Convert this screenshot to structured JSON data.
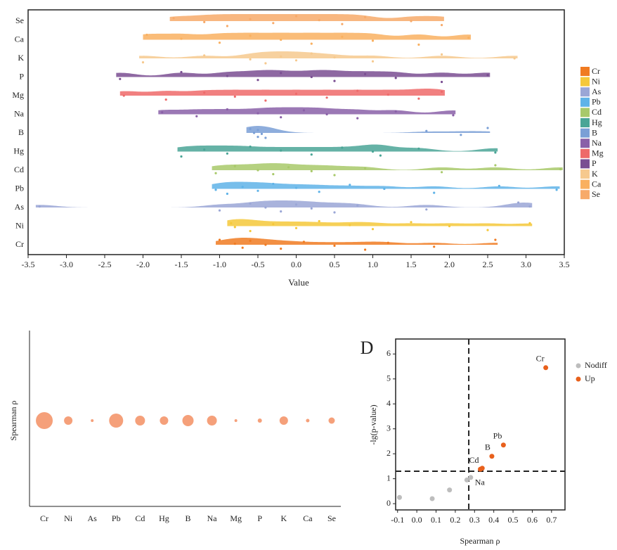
{
  "chart_data": [
    {
      "type": "raincloud",
      "xlabel": "Value",
      "xlim": [
        -3.5,
        3.5
      ],
      "xticks": [
        {
          "value": -3.5,
          "label": "-3.5"
        },
        {
          "value": -3,
          "label": "-3.0"
        },
        {
          "value": -2.5,
          "label": "-2.5"
        },
        {
          "value": -2,
          "label": "-2.0"
        },
        {
          "value": -1.5,
          "label": "-1.5"
        },
        {
          "value": -1,
          "label": "-1.0"
        },
        {
          "value": -0.5,
          "label": "-0.5"
        },
        {
          "value": 0,
          "label": "0.0"
        },
        {
          "value": 0.5,
          "label": "0.5"
        },
        {
          "value": 1,
          "label": "1.0"
        },
        {
          "value": 1.5,
          "label": "1.5"
        },
        {
          "value": 2,
          "label": "2.0"
        },
        {
          "value": 2.5,
          "label": "2.5"
        },
        {
          "value": 3,
          "label": "3.0"
        },
        {
          "value": 3.5,
          "label": "3.5"
        }
      ],
      "legend": "right",
      "series": [
        {
          "name": "Cr",
          "color": "#f07b22",
          "values": [
            -1.0,
            -0.8,
            -0.7,
            -0.6,
            -0.4,
            -0.2,
            0.1,
            0.5,
            0.9,
            1.2,
            1.8,
            2.6
          ]
        },
        {
          "name": "Ni",
          "color": "#f5c83a",
          "values": [
            -0.85,
            -0.8,
            -0.6,
            -0.3,
            0,
            0.3,
            0.7,
            1.0,
            1.5,
            2.0,
            2.5,
            3.05
          ]
        },
        {
          "name": "As",
          "color": "#9aa6d6",
          "values": [
            -3.35,
            -1.0,
            -0.6,
            -0.4,
            -0.2,
            0,
            0.2,
            0.5,
            0.8,
            1.7,
            2.9,
            3.05
          ]
        },
        {
          "name": "Pb",
          "color": "#5fb3e8",
          "values": [
            -1.05,
            -0.9,
            -0.7,
            -0.5,
            -0.3,
            0,
            0.3,
            0.7,
            1.15,
            1.8,
            2.65,
            3.4
          ]
        },
        {
          "name": "Cd",
          "color": "#a8c96a",
          "values": [
            -1.05,
            -0.8,
            -0.5,
            -0.3,
            -0.1,
            0.2,
            0.5,
            0.9,
            1.9,
            2.6,
            3.45
          ]
        },
        {
          "name": "Hg",
          "color": "#4aa596",
          "values": [
            -1.5,
            -1.2,
            -0.9,
            -0.6,
            -0.2,
            0.2,
            0.6,
            1.0,
            1.1,
            1.6,
            2.6
          ]
        },
        {
          "name": "B",
          "color": "#7a9fd6",
          "values": [
            -0.6,
            -0.55,
            -0.5,
            -0.5,
            -0.45,
            -0.4,
            1.7,
            2.15,
            2.5
          ]
        },
        {
          "name": "Na",
          "color": "#8a60a8",
          "values": [
            -1.75,
            -1.3,
            -0.9,
            -0.5,
            -0.2,
            0.1,
            0.4,
            0.8,
            1.3,
            2.05
          ]
        },
        {
          "name": "Mg",
          "color": "#ee6a6a",
          "values": [
            -2.25,
            -1.7,
            -1.2,
            -0.8,
            -0.4,
            0,
            0.4,
            0.8,
            1.2,
            1.6,
            1.9
          ]
        },
        {
          "name": "P",
          "color": "#7a4e92",
          "values": [
            -2.3,
            -1.5,
            -0.9,
            -0.5,
            -0.2,
            0.2,
            0.5,
            0.9,
            1.3,
            1.9,
            2.5
          ]
        },
        {
          "name": "K",
          "color": "#f6c98e",
          "values": [
            -2.0,
            -1.2,
            -0.6,
            -0.4,
            -0.2,
            0,
            0.2,
            0.5,
            1.0,
            1.9,
            2.85
          ]
        },
        {
          "name": "Ca",
          "color": "#f9b060",
          "values": [
            -1.95,
            -1.5,
            -1.0,
            -0.6,
            -0.2,
            0.2,
            0.6,
            1.0,
            1.6,
            2.25
          ]
        },
        {
          "name": "Se",
          "color": "#f7aa6a",
          "values": [
            -1.6,
            -1.2,
            -0.9,
            -0.6,
            -0.3,
            0,
            0.3,
            0.6,
            0.9,
            1.5,
            1.9
          ]
        }
      ]
    },
    {
      "type": "bubble",
      "ylabel": "Spearman ρ",
      "color": "#f5a07a",
      "categories": [
        "Cr",
        "Ni",
        "As",
        "Pb",
        "Cd",
        "Hg",
        "B",
        "Na",
        "Mg",
        "P",
        "K",
        "Ca",
        "Se"
      ],
      "sizes": [
        12,
        6,
        2,
        10,
        7,
        6,
        8,
        7,
        2,
        3,
        6,
        2.5,
        4.5
      ]
    },
    {
      "type": "scatter",
      "panel": "D",
      "xlabel": "Spearman ρ",
      "ylabel": "-lg(p-value)",
      "xlim": [
        -0.11,
        0.77
      ],
      "ylim": [
        -0.25,
        6.6
      ],
      "xticks": [
        -0.1,
        {
          "value": 0,
          "label": "0.0"
        },
        0.1,
        0.2,
        0.3,
        0.4,
        0.5,
        0.6,
        0.7
      ],
      "yticks": [
        0,
        1,
        2,
        3,
        4,
        5,
        6
      ],
      "vlines": [
        0.27
      ],
      "hlines": [
        1.3
      ],
      "legend": "right",
      "series": [
        {
          "name": "Nodiff",
          "color": "#bdbdbd",
          "x": [
            -0.09,
            0.08,
            0.17,
            0.26,
            0.28
          ],
          "values": [
            0.25,
            0.2,
            0.55,
            0.95,
            1.05
          ],
          "labels": [
            null,
            null,
            null,
            null,
            "Na"
          ]
        },
        {
          "name": "Up",
          "color": "#e8601c",
          "x": [
            0.33,
            0.34,
            0.39,
            0.45,
            0.67
          ],
          "values": [
            1.38,
            1.42,
            1.9,
            2.35,
            5.45
          ],
          "labels": [
            "Cd",
            null,
            "B",
            "Pb",
            "Cr"
          ]
        }
      ]
    }
  ]
}
